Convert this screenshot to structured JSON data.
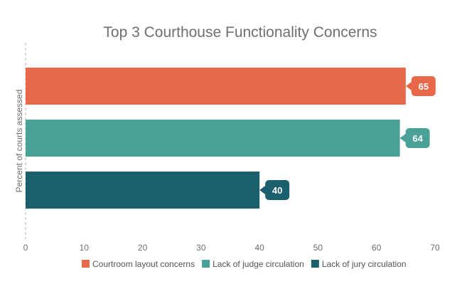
{
  "chart_data": {
    "type": "bar",
    "orientation": "horizontal",
    "title": "Top 3 Courthouse Functionality Concerns",
    "ylabel": "Percent of courts assessed",
    "xlabel": "",
    "xlim": [
      0,
      70
    ],
    "xticks": [
      0,
      10,
      20,
      30,
      40,
      50,
      60,
      70
    ],
    "grid": false,
    "legend_position": "bottom",
    "series": [
      {
        "name": "Courtroom layout concerns",
        "value": 65,
        "color": "#e8694a"
      },
      {
        "name": "Lack of judge circulation",
        "value": 64,
        "color": "#4aa198"
      },
      {
        "name": "Lack of jury circulation",
        "value": 40,
        "color": "#1b5e6e"
      }
    ]
  }
}
